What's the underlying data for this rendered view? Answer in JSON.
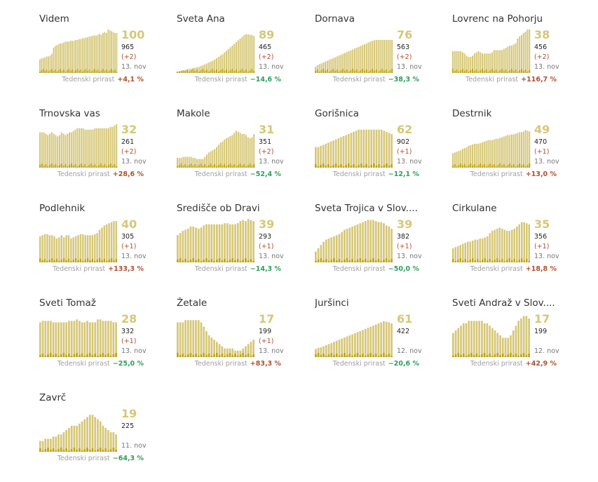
{
  "chart_data": [
    {
      "type": "bar",
      "title": "Videm",
      "value": "100",
      "total": "965",
      "delta": "(+2)",
      "date": "13. nov",
      "growth_label": "Tedenski prirast",
      "growth": "+4,1 %",
      "growth_positive": true,
      "max": 100,
      "values": [
        31,
        34,
        34,
        36,
        38,
        38,
        40,
        44,
        58,
        62,
        64,
        66,
        68,
        68,
        70,
        72,
        72,
        72,
        74,
        74,
        74,
        76,
        76,
        78,
        78,
        80,
        80,
        82,
        82,
        84,
        84,
        86,
        86,
        86,
        88,
        90,
        88,
        92,
        94,
        92,
        100,
        98,
        96,
        94,
        92,
        92
      ]
    },
    {
      "type": "bar",
      "title": "Sveta Ana",
      "value": "89",
      "total": "465",
      "delta": "(+2)",
      "date": "13. nov",
      "growth_label": "Tedenski prirast",
      "growth": "−14,6 %",
      "growth_positive": false,
      "max": 100,
      "values": [
        3,
        4,
        5,
        6,
        7,
        8,
        9,
        10,
        11,
        12,
        13,
        14,
        16,
        18,
        20,
        22,
        24,
        26,
        28,
        31,
        34,
        37,
        40,
        43,
        47,
        51,
        55,
        59,
        63,
        67,
        71,
        75,
        79,
        83,
        87,
        89,
        89,
        88,
        87,
        85
      ]
    },
    {
      "type": "bar",
      "title": "Dornava",
      "value": "76",
      "total": "563",
      "delta": "(+2)",
      "date": "13. nov",
      "growth_label": "Tedenski prirast",
      "growth": "−38,3 %",
      "growth_positive": false,
      "max": 100,
      "values": [
        14,
        18,
        20,
        22,
        24,
        26,
        28,
        30,
        32,
        34,
        36,
        38,
        40,
        42,
        44,
        46,
        48,
        50,
        52,
        54,
        56,
        58,
        60,
        62,
        64,
        66,
        68,
        70,
        72,
        74,
        75,
        76,
        76,
        76,
        76,
        76,
        76,
        76,
        76,
        76
      ]
    },
    {
      "type": "bar",
      "title": "Lovrenc na Pohorju",
      "value": "38",
      "total": "456",
      "delta": "(+2)",
      "date": "13. nov",
      "growth_label": "Tedenski prirast",
      "growth": "+116,7 %",
      "growth_positive": true,
      "max": 38,
      "values": [
        19,
        19,
        19,
        19,
        19,
        18,
        17,
        15,
        14,
        14,
        15,
        17,
        18,
        19,
        18,
        17,
        17,
        17,
        17,
        17,
        18,
        20,
        20,
        20,
        20,
        20,
        21,
        22,
        23,
        24,
        24,
        25,
        26,
        30,
        32,
        33,
        35,
        36,
        38,
        38
      ]
    },
    {
      "type": "bar",
      "title": "Trnovska vas",
      "value": "32",
      "total": "261",
      "delta": "(+2)",
      "date": "13. nov",
      "growth_label": "Tedenski prirast",
      "growth": "+28,6 %",
      "growth_positive": true,
      "max": 32,
      "values": [
        26,
        26,
        26,
        25,
        24,
        25,
        26,
        25,
        24,
        23,
        24,
        26,
        25,
        24,
        25,
        26,
        26,
        27,
        28,
        29,
        29,
        29,
        29,
        28,
        28,
        28,
        28,
        28,
        29,
        29,
        29,
        29,
        29,
        29,
        29,
        29,
        30,
        30,
        31,
        32
      ]
    },
    {
      "type": "bar",
      "title": "Makole",
      "value": "31",
      "total": "351",
      "delta": "(+2)",
      "date": "13. nov",
      "growth_label": "Tedenski prirast",
      "growth": "−52,4 %",
      "growth_positive": false,
      "max": 40,
      "values": [
        9,
        9,
        9,
        10,
        10,
        10,
        10,
        10,
        9,
        9,
        8,
        8,
        8,
        8,
        10,
        12,
        14,
        15,
        16,
        17,
        19,
        21,
        23,
        24,
        26,
        27,
        28,
        29,
        30,
        32,
        34,
        33,
        32,
        31,
        31,
        30,
        28,
        27,
        28,
        31
      ]
    },
    {
      "type": "bar",
      "title": "Gorišnica",
      "value": "62",
      "total": "902",
      "delta": "(+1)",
      "date": "13. nov",
      "growth_label": "Tedenski prirast",
      "growth": "−12,1 %",
      "growth_positive": false,
      "max": 80,
      "values": [
        38,
        38,
        40,
        42,
        44,
        46,
        48,
        50,
        52,
        54,
        56,
        58,
        60,
        62,
        64,
        66,
        68,
        70,
        70,
        70,
        70,
        70,
        70,
        70,
        70,
        70,
        70,
        68,
        66,
        64,
        62
      ]
    },
    {
      "type": "bar",
      "title": "Destrnik",
      "value": "49",
      "total": "470",
      "delta": "(+1)",
      "date": "13. nov",
      "growth_label": "Tedenski prirast",
      "growth": "+13,0 %",
      "growth_positive": true,
      "max": 60,
      "values": [
        20,
        21,
        22,
        23,
        24,
        26,
        27,
        28,
        30,
        31,
        32,
        33,
        33,
        33,
        34,
        35,
        36,
        37,
        38,
        38,
        38,
        39,
        40,
        40,
        41,
        42,
        43,
        44,
        45,
        45,
        46,
        46,
        47,
        48,
        49,
        49,
        50,
        52,
        51,
        50
      ]
    },
    {
      "type": "bar",
      "title": "Podlehnik",
      "value": "40",
      "total": "305",
      "delta": "(+1)",
      "date": "13. nov",
      "growth_label": "Tedenski prirast",
      "growth": "+133,3 %",
      "growth_positive": true,
      "max": 40,
      "values": [
        24,
        25,
        26,
        26,
        25,
        25,
        24,
        22,
        23,
        25,
        23,
        25,
        25,
        22,
        23,
        24,
        25,
        26,
        26,
        25,
        25,
        25,
        25,
        26,
        27,
        30,
        32,
        34,
        35,
        36,
        37,
        38,
        38
      ]
    },
    {
      "type": "bar",
      "title": "Središče ob Dravi",
      "value": "39",
      "total": "293",
      "delta": "(+1)",
      "date": "13. nov",
      "growth_label": "Tedenski prirast",
      "growth": "−14,3 %",
      "growth_positive": false,
      "max": 40,
      "values": [
        25,
        27,
        29,
        30,
        31,
        33,
        33,
        32,
        31,
        32,
        34,
        35,
        35,
        35,
        35,
        35,
        35,
        35,
        36,
        36,
        35,
        35,
        35,
        36,
        38,
        39,
        38,
        40,
        39,
        38
      ]
    },
    {
      "type": "bar",
      "title": "Sveta Trojica v Slov....",
      "value": "39",
      "total": "382",
      "delta": "(+1)",
      "date": "13. nov",
      "growth_label": "Tedenski prirast",
      "growth": "−50,0 %",
      "growth_positive": false,
      "max": 40,
      "values": [
        10,
        13,
        16,
        19,
        21,
        22,
        23,
        24,
        25,
        26,
        28,
        30,
        31,
        32,
        33,
        34,
        35,
        36,
        37,
        38,
        39,
        39,
        39,
        38,
        37,
        37,
        36,
        34,
        33,
        31
      ]
    },
    {
      "type": "bar",
      "title": "Cirkulane",
      "value": "35",
      "total": "356",
      "delta": "(+1)",
      "date": "13. nov",
      "growth_label": "Tedenski prirast",
      "growth": "+18,8 %",
      "growth_positive": true,
      "max": 40,
      "values": [
        13,
        14,
        15,
        16,
        17,
        18,
        19,
        19,
        20,
        21,
        21,
        22,
        22,
        23,
        24,
        27,
        29,
        30,
        31,
        32,
        31,
        30,
        29,
        29,
        30,
        31,
        33,
        35,
        37,
        37,
        36,
        35
      ]
    },
    {
      "type": "bar",
      "title": "Sveti Tomaž",
      "value": "28",
      "total": "332",
      "delta": "(+1)",
      "date": "13. nov",
      "growth_label": "Tedenski prirast",
      "growth": "−25,0 %",
      "growth_positive": false,
      "max": 30,
      "values": [
        24,
        25,
        25,
        25,
        25,
        24,
        24,
        24,
        24,
        24,
        24,
        25,
        25,
        25,
        26,
        25,
        24,
        24,
        25,
        24,
        24,
        24,
        26,
        26,
        25,
        25,
        25,
        25,
        24,
        24
      ]
    },
    {
      "type": "bar",
      "title": "Žetale",
      "value": "17",
      "total": "199",
      "delta": "(+1)",
      "date": "13. nov",
      "growth_label": "Tedenski prirast",
      "growth": "+83,3 %",
      "growth_positive": true,
      "max": 20,
      "values": [
        16,
        16,
        16,
        17,
        17,
        17,
        17,
        17,
        17,
        16,
        14,
        12,
        10,
        9,
        8,
        7,
        6,
        5,
        4,
        4,
        4,
        4,
        3,
        3,
        3,
        4,
        5,
        6,
        7,
        8
      ]
    },
    {
      "type": "bar",
      "title": "Juršinci",
      "value": "61",
      "total": "422",
      "delta": "",
      "date": "12. nov",
      "growth_label": "Tedenski prirast",
      "growth": "−20,6 %",
      "growth_positive": false,
      "max": 80,
      "values": [
        15,
        17,
        18,
        20,
        22,
        24,
        26,
        28,
        30,
        32,
        34,
        36,
        38,
        40,
        42,
        44,
        46,
        48,
        50,
        52,
        54,
        56,
        58,
        60,
        62,
        64,
        66,
        65,
        64,
        62
      ]
    },
    {
      "type": "bar",
      "title": "Sveti Andraž v Slov....",
      "value": "17",
      "total": "199",
      "delta": "",
      "date": "12. nov",
      "growth_label": "Tedenski prirast",
      "growth": "+42,9 %",
      "growth_positive": true,
      "max": 18,
      "values": [
        10,
        11,
        12,
        13,
        14,
        14,
        15,
        15,
        15,
        15,
        15,
        15,
        14,
        14,
        13,
        12,
        11,
        10,
        9,
        8,
        8,
        8,
        9,
        11,
        13,
        15,
        16,
        17,
        17,
        16
      ]
    },
    {
      "type": "bar",
      "title": "Zavrč",
      "value": "19",
      "total": "225",
      "delta": "",
      "date": "11. nov",
      "growth_label": "Tedenski prirast",
      "growth": "−64,3 %",
      "growth_positive": false,
      "max": 20,
      "values": [
        5,
        5,
        6,
        6,
        6,
        7,
        7,
        8,
        8,
        9,
        10,
        11,
        12,
        12,
        12,
        13,
        14,
        15,
        16,
        17,
        17,
        16,
        15,
        14,
        12,
        11,
        10,
        9,
        9,
        8
      ]
    }
  ],
  "colors": {
    "bar": "#d6c777",
    "accent": "#bfa51a",
    "positive": "#b05030",
    "negative": "#2e9e5b"
  }
}
